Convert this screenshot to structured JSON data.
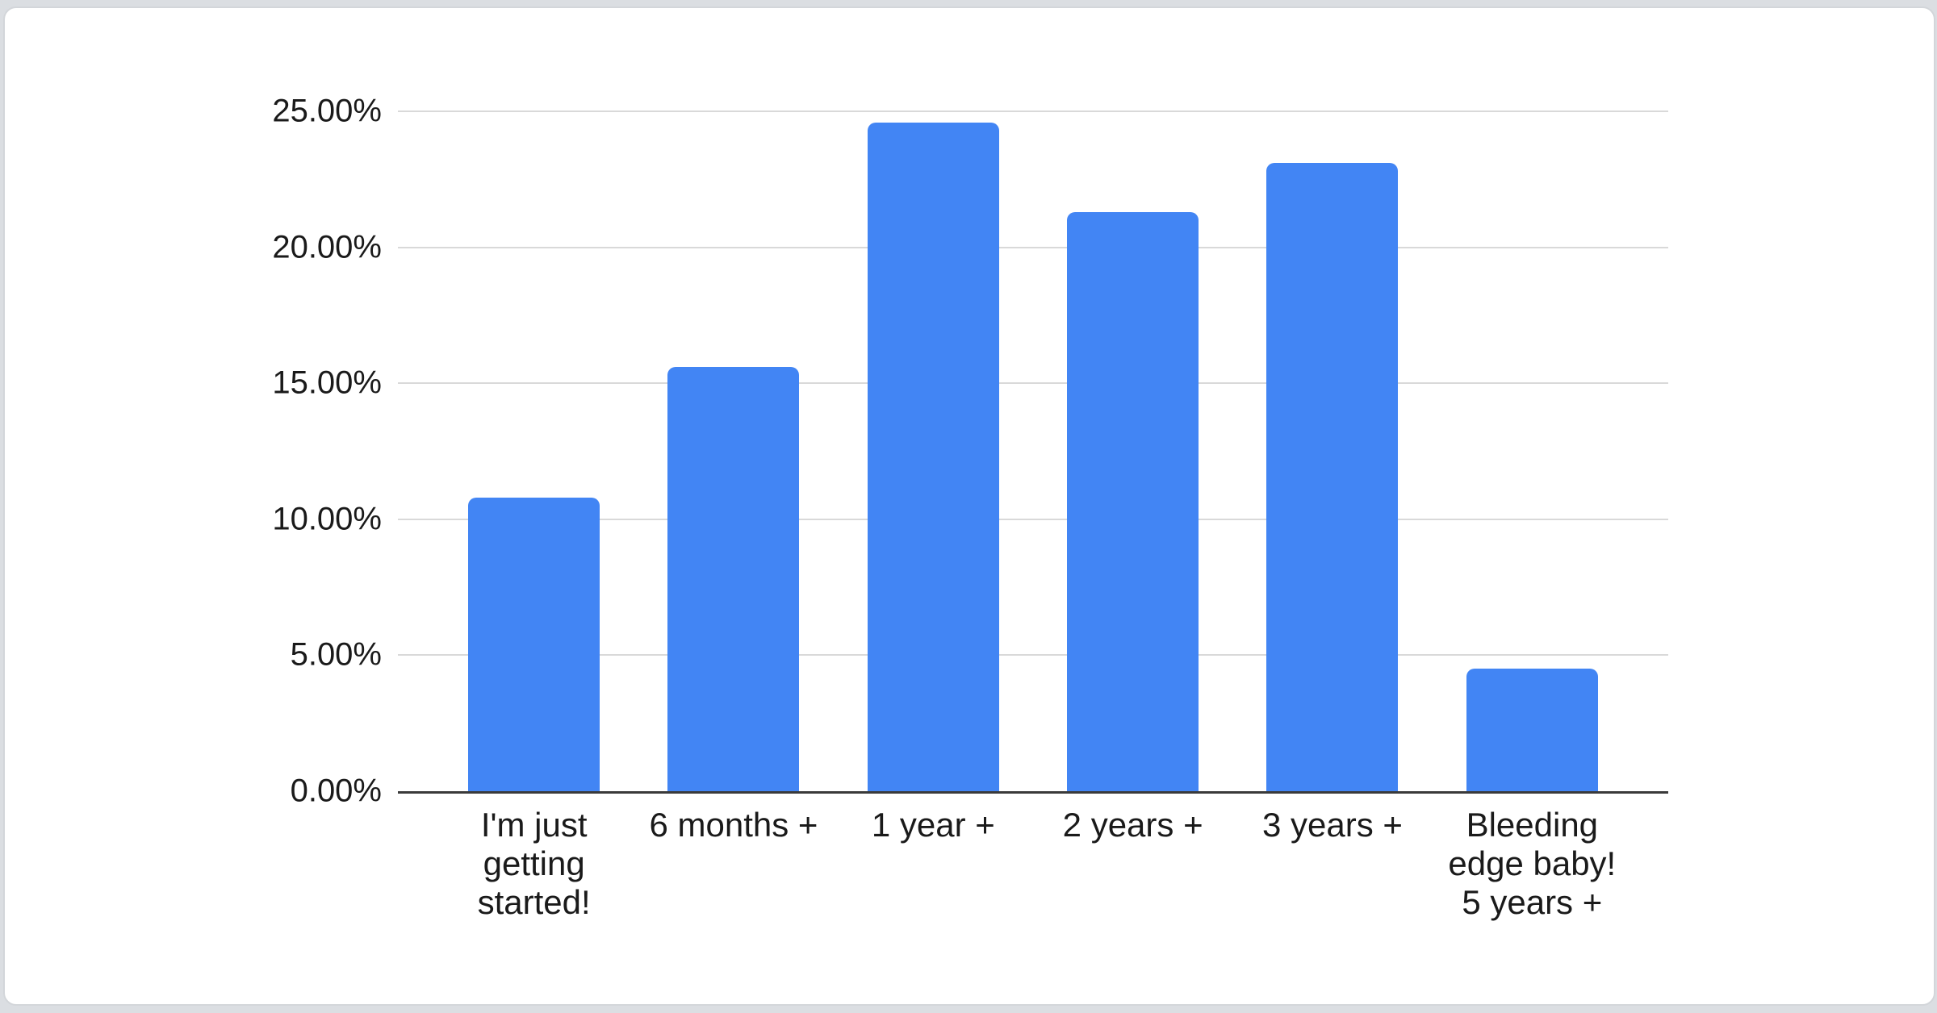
{
  "page": {
    "background": "#dbdee2",
    "card_background": "#ffffff"
  },
  "chart_data": {
    "type": "bar",
    "title": "",
    "xlabel": "",
    "ylabel": "",
    "categories": [
      "I'm just getting started!",
      "6 months +",
      "1 year +",
      "2 years +",
      "3 years +",
      "Bleeding edge baby! 5 years +"
    ],
    "category_lines": [
      [
        "I'm just",
        "getting",
        "started!"
      ],
      [
        "6 months +"
      ],
      [
        "1 year +"
      ],
      [
        "2 years +"
      ],
      [
        "3 years +"
      ],
      [
        "Bleeding",
        "edge baby!",
        "5 years +"
      ]
    ],
    "values": [
      10.8,
      15.6,
      24.6,
      21.3,
      23.1,
      4.5
    ],
    "unit": "%",
    "y_axis": {
      "min": 0,
      "max": 25,
      "tick_step": 5,
      "ticks": [
        "25.00%",
        "20.00%",
        "15.00%",
        "10.00%",
        "5.00%",
        "0.00%"
      ]
    },
    "grid": true,
    "legend": "none",
    "colors": {
      "bar": "#4285f4",
      "gridline": "#d9d9d9",
      "axis_line": "#3a3a3a",
      "label_text": "#1a1a1a"
    }
  }
}
